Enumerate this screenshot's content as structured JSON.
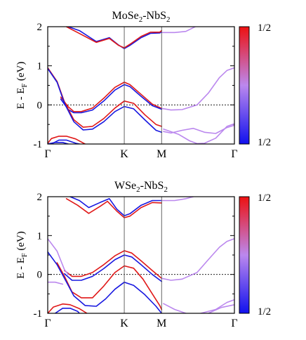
{
  "figure_id": "figure",
  "colorbar": {
    "top_label": "1/2",
    "bottom_label": "1/2",
    "top_color": "#ee1111",
    "mid_color": "#bb88ee",
    "bottom_color": "#1111ee"
  },
  "chart_data": [
    {
      "type": "line",
      "title": "MoSe₂-NbS₂",
      "title_base_a": "MoSe",
      "title_sub_a": "2",
      "title_mid": "-NbS",
      "title_sub_b": "2",
      "ylabel_base": "E - E",
      "ylabel_sub": "F",
      "ylabel_unit": " (eV)",
      "ylim": [
        -1,
        2
      ],
      "yticks": [
        "2",
        "1",
        "0",
        "-1"
      ],
      "xticks": [
        {
          "label": "Γ",
          "k": 0.0
        },
        {
          "label": "K",
          "k": 0.41
        },
        {
          "label": "M",
          "k": 0.61
        },
        {
          "label": "Γ",
          "k": 1.0
        }
      ],
      "fermi_level": 0,
      "series": [
        {
          "color": "blue",
          "points": [
            [
              0.11,
              2.0
            ],
            [
              0.17,
              1.9
            ],
            [
              0.26,
              1.62
            ],
            [
              0.33,
              1.72
            ],
            [
              0.38,
              1.53
            ],
            [
              0.41,
              1.44
            ],
            [
              0.44,
              1.52
            ],
            [
              0.5,
              1.72
            ],
            [
              0.55,
              1.83
            ],
            [
              0.6,
              1.84
            ],
            [
              0.61,
              1.86
            ]
          ]
        },
        {
          "color": "red",
          "points": [
            [
              0.1,
              2.0
            ],
            [
              0.16,
              1.85
            ],
            [
              0.26,
              1.6
            ],
            [
              0.33,
              1.7
            ],
            [
              0.38,
              1.52
            ],
            [
              0.41,
              1.46
            ],
            [
              0.44,
              1.55
            ],
            [
              0.5,
              1.75
            ],
            [
              0.55,
              1.86
            ],
            [
              0.6,
              1.86
            ],
            [
              0.61,
              1.9
            ]
          ]
        },
        {
          "color": "red",
          "points": [
            [
              0.07,
              0.2
            ],
            [
              0.11,
              -0.05
            ],
            [
              0.14,
              -0.17
            ],
            [
              0.18,
              -0.17
            ],
            [
              0.24,
              -0.08
            ],
            [
              0.3,
              0.17
            ],
            [
              0.36,
              0.45
            ],
            [
              0.41,
              0.58
            ],
            [
              0.44,
              0.52
            ],
            [
              0.5,
              0.27
            ],
            [
              0.56,
              0.02
            ],
            [
              0.61,
              -0.09
            ]
          ]
        },
        {
          "color": "blue",
          "points": [
            [
              0.07,
              0.15
            ],
            [
              0.11,
              -0.12
            ],
            [
              0.14,
              -0.2
            ],
            [
              0.18,
              -0.2
            ],
            [
              0.24,
              -0.13
            ],
            [
              0.3,
              0.1
            ],
            [
              0.36,
              0.38
            ],
            [
              0.41,
              0.52
            ],
            [
              0.44,
              0.47
            ],
            [
              0.5,
              0.22
            ],
            [
              0.56,
              -0.02
            ],
            [
              0.61,
              -0.11
            ]
          ]
        },
        {
          "color": "red",
          "points": [
            [
              0.0,
              0.95
            ],
            [
              0.05,
              0.6
            ],
            [
              0.09,
              0.07
            ],
            [
              0.14,
              -0.38
            ],
            [
              0.19,
              -0.57
            ],
            [
              0.24,
              -0.55
            ],
            [
              0.3,
              -0.35
            ],
            [
              0.36,
              -0.08
            ],
            [
              0.41,
              0.1
            ],
            [
              0.46,
              0.04
            ],
            [
              0.52,
              -0.25
            ],
            [
              0.58,
              -0.5
            ],
            [
              0.61,
              -0.55
            ]
          ]
        },
        {
          "color": "blue",
          "points": [
            [
              0.0,
              0.93
            ],
            [
              0.05,
              0.58
            ],
            [
              0.09,
              0.04
            ],
            [
              0.14,
              -0.43
            ],
            [
              0.19,
              -0.64
            ],
            [
              0.24,
              -0.62
            ],
            [
              0.3,
              -0.43
            ],
            [
              0.36,
              -0.17
            ],
            [
              0.41,
              -0.04
            ],
            [
              0.46,
              -0.1
            ],
            [
              0.52,
              -0.38
            ],
            [
              0.58,
              -0.65
            ],
            [
              0.61,
              -0.7
            ]
          ]
        },
        {
          "color": "red",
          "points": [
            [
              0.0,
              -0.98
            ],
            [
              0.02,
              -0.86
            ],
            [
              0.06,
              -0.8
            ],
            [
              0.1,
              -0.8
            ],
            [
              0.15,
              -0.87
            ],
            [
              0.2,
              -1.0
            ]
          ]
        },
        {
          "color": "blue",
          "points": [
            [
              0.02,
              -1.0
            ],
            [
              0.06,
              -0.9
            ],
            [
              0.1,
              -0.9
            ],
            [
              0.15,
              -0.98
            ],
            [
              0.17,
              -1.0
            ]
          ]
        },
        {
          "color": "blue",
          "points": [
            [
              0.0,
              -1.0
            ],
            [
              0.04,
              -0.96
            ],
            [
              0.08,
              -0.96
            ],
            [
              0.11,
              -1.0
            ]
          ]
        },
        {
          "color": "purple",
          "points": [
            [
              0.61,
              1.85
            ],
            [
              0.68,
              1.85
            ],
            [
              0.74,
              1.88
            ],
            [
              0.79,
              2.0
            ]
          ]
        },
        {
          "color": "purple",
          "points": [
            [
              0.61,
              -0.09
            ],
            [
              0.66,
              -0.13
            ],
            [
              0.72,
              -0.12
            ],
            [
              0.8,
              0.0
            ],
            [
              0.86,
              0.3
            ],
            [
              0.92,
              0.7
            ],
            [
              0.96,
              0.88
            ],
            [
              1.0,
              0.95
            ]
          ]
        },
        {
          "color": "purple",
          "points": [
            [
              0.62,
              -0.68
            ],
            [
              0.66,
              -0.72
            ],
            [
              0.72,
              -0.65
            ],
            [
              0.78,
              -0.6
            ],
            [
              0.84,
              -0.7
            ],
            [
              0.9,
              -0.73
            ],
            [
              0.96,
              -0.58
            ],
            [
              1.0,
              -0.52
            ]
          ]
        },
        {
          "color": "purple",
          "points": [
            [
              0.62,
              -0.62
            ],
            [
              0.7,
              -0.75
            ],
            [
              0.76,
              -0.92
            ],
            [
              0.8,
              -0.99
            ],
            [
              0.84,
              -0.98
            ],
            [
              0.9,
              -0.85
            ],
            [
              0.96,
              -0.55
            ],
            [
              1.0,
              -0.48
            ]
          ]
        }
      ]
    },
    {
      "type": "line",
      "title": "WSe₂-NbS₂",
      "title_base_a": "WSe",
      "title_sub_a": "2",
      "title_mid": "-NbS",
      "title_sub_b": "2",
      "ylabel_base": "E - E",
      "ylabel_sub": "F",
      "ylabel_unit": " (eV)",
      "ylim": [
        -1,
        2
      ],
      "yticks": [
        "2",
        "1",
        "0",
        "-1"
      ],
      "xticks": [
        {
          "label": "Γ",
          "k": 0.0
        },
        {
          "label": "K",
          "k": 0.41
        },
        {
          "label": "M",
          "k": 0.61
        },
        {
          "label": "Γ",
          "k": 1.0
        }
      ],
      "fermi_level": 0,
      "series": [
        {
          "color": "red",
          "points": [
            [
              0.1,
              1.95
            ],
            [
              0.16,
              1.78
            ],
            [
              0.22,
              1.57
            ],
            [
              0.28,
              1.75
            ],
            [
              0.32,
              1.88
            ],
            [
              0.37,
              1.63
            ],
            [
              0.41,
              1.46
            ],
            [
              0.44,
              1.5
            ],
            [
              0.5,
              1.72
            ],
            [
              0.56,
              1.85
            ],
            [
              0.61,
              1.84
            ]
          ]
        },
        {
          "color": "blue",
          "points": [
            [
              0.12,
              2.0
            ],
            [
              0.17,
              1.9
            ],
            [
              0.22,
              1.72
            ],
            [
              0.28,
              1.85
            ],
            [
              0.33,
              1.95
            ],
            [
              0.37,
              1.68
            ],
            [
              0.41,
              1.51
            ],
            [
              0.44,
              1.56
            ],
            [
              0.5,
              1.78
            ],
            [
              0.56,
              1.9
            ],
            [
              0.61,
              1.9
            ]
          ]
        },
        {
          "color": "red",
          "points": [
            [
              0.09,
              0.1
            ],
            [
              0.13,
              -0.05
            ],
            [
              0.18,
              -0.05
            ],
            [
              0.24,
              0.05
            ],
            [
              0.3,
              0.25
            ],
            [
              0.36,
              0.48
            ],
            [
              0.41,
              0.61
            ],
            [
              0.45,
              0.55
            ],
            [
              0.5,
              0.35
            ],
            [
              0.56,
              0.1
            ],
            [
              0.61,
              -0.1
            ]
          ]
        },
        {
          "color": "blue",
          "points": [
            [
              0.09,
              0.02
            ],
            [
              0.13,
              -0.15
            ],
            [
              0.18,
              -0.15
            ],
            [
              0.24,
              -0.05
            ],
            [
              0.3,
              0.15
            ],
            [
              0.36,
              0.38
            ],
            [
              0.41,
              0.5
            ],
            [
              0.45,
              0.45
            ],
            [
              0.5,
              0.25
            ],
            [
              0.56,
              0.0
            ],
            [
              0.61,
              -0.18
            ]
          ]
        },
        {
          "color": "red",
          "points": [
            [
              0.05,
              0.3
            ],
            [
              0.09,
              -0.05
            ],
            [
              0.13,
              -0.45
            ],
            [
              0.18,
              -0.6
            ],
            [
              0.24,
              -0.6
            ],
            [
              0.3,
              -0.3
            ],
            [
              0.36,
              0.05
            ],
            [
              0.41,
              0.22
            ],
            [
              0.46,
              0.16
            ],
            [
              0.51,
              -0.12
            ],
            [
              0.56,
              -0.5
            ],
            [
              0.6,
              -0.8
            ],
            [
              0.61,
              -0.9
            ]
          ]
        },
        {
          "color": "blue",
          "points": [
            [
              0.0,
              0.58
            ],
            [
              0.05,
              0.25
            ],
            [
              0.09,
              -0.1
            ],
            [
              0.14,
              -0.55
            ],
            [
              0.2,
              -0.8
            ],
            [
              0.26,
              -0.82
            ],
            [
              0.31,
              -0.63
            ],
            [
              0.36,
              -0.38
            ],
            [
              0.41,
              -0.2
            ],
            [
              0.46,
              -0.28
            ],
            [
              0.52,
              -0.52
            ],
            [
              0.58,
              -0.82
            ],
            [
              0.61,
              -1.0
            ]
          ]
        },
        {
          "color": "red",
          "points": [
            [
              0.0,
              -1.0
            ],
            [
              0.03,
              -0.84
            ],
            [
              0.08,
              -0.76
            ],
            [
              0.12,
              -0.78
            ],
            [
              0.17,
              -0.88
            ],
            [
              0.21,
              -1.0
            ]
          ]
        },
        {
          "color": "blue",
          "points": [
            [
              0.04,
              -1.0
            ],
            [
              0.08,
              -0.87
            ],
            [
              0.12,
              -0.87
            ],
            [
              0.16,
              -0.95
            ],
            [
              0.17,
              -1.0
            ]
          ]
        },
        {
          "color": "purple",
          "points": [
            [
              0.61,
              1.9
            ],
            [
              0.68,
              1.9
            ],
            [
              0.74,
              1.95
            ],
            [
              0.78,
              2.0
            ]
          ]
        },
        {
          "color": "purple",
          "points": [
            [
              0.0,
              0.92
            ],
            [
              0.05,
              0.6
            ],
            [
              0.09,
              0.12
            ],
            [
              0.11,
              0.0
            ]
          ]
        },
        {
          "color": "purple",
          "points": [
            [
              0.61,
              -0.1
            ],
            [
              0.66,
              -0.15
            ],
            [
              0.72,
              -0.12
            ],
            [
              0.8,
              0.05
            ],
            [
              0.86,
              0.38
            ],
            [
              0.92,
              0.7
            ],
            [
              0.96,
              0.85
            ],
            [
              1.0,
              0.92
            ]
          ]
        },
        {
          "color": "purple",
          "points": [
            [
              0.0,
              -0.2
            ],
            [
              0.04,
              -0.2
            ],
            [
              0.08,
              -0.25
            ]
          ]
        },
        {
          "color": "purple",
          "points": [
            [
              0.62,
              -0.75
            ],
            [
              0.68,
              -0.9
            ],
            [
              0.74,
              -1.0
            ]
          ]
        },
        {
          "color": "purple",
          "points": [
            [
              0.82,
              -1.0
            ],
            [
              0.9,
              -0.9
            ],
            [
              0.96,
              -0.72
            ],
            [
              1.0,
              -0.65
            ]
          ]
        },
        {
          "color": "purple",
          "points": [
            [
              0.86,
              -1.0
            ],
            [
              0.93,
              -0.85
            ],
            [
              1.0,
              -0.78
            ]
          ]
        }
      ]
    }
  ]
}
